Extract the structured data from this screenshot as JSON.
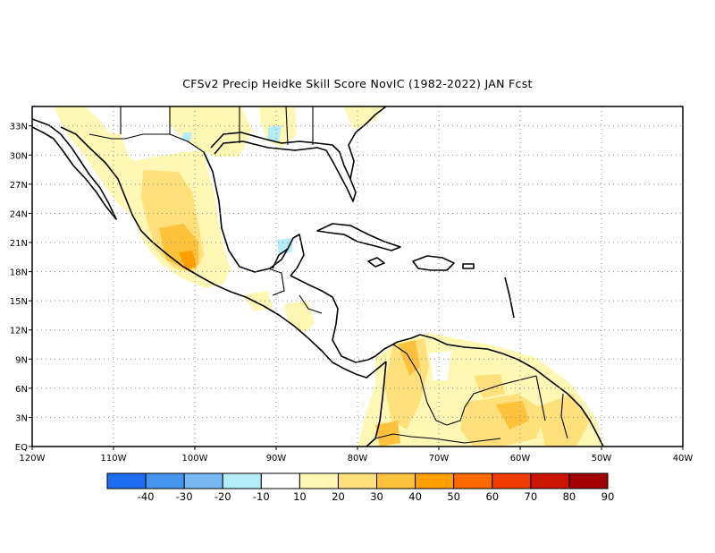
{
  "map": {
    "title": "CFSv2 Precip Heidke Skill Score NovIC (1982-2022) JAN Fcst",
    "lon_ticks": [
      "120W",
      "110W",
      "100W",
      "90W",
      "80W",
      "70W",
      "60W",
      "50W",
      "40W"
    ],
    "lat_ticks": [
      "EQ",
      "3N",
      "6N",
      "9N",
      "12N",
      "15N",
      "18N",
      "21N",
      "24N",
      "27N",
      "30N",
      "33N"
    ],
    "lon_range": [
      -120,
      -40
    ],
    "lat_range": [
      0,
      35
    ],
    "grid": "dotted"
  },
  "colorbar": {
    "labels": [
      "-40",
      "-30",
      "-20",
      "-10",
      "10",
      "20",
      "30",
      "40",
      "50",
      "60",
      "70",
      "80",
      "90"
    ],
    "colors": [
      "#1e6cf0",
      "#4696f0",
      "#78b8f4",
      "#b4ecf8",
      "#ffffff",
      "#fff8b4",
      "#ffe07a",
      "#ffc23c",
      "#ffa000",
      "#ff6a00",
      "#f03c00",
      "#c81400",
      "#a00000"
    ]
  }
}
